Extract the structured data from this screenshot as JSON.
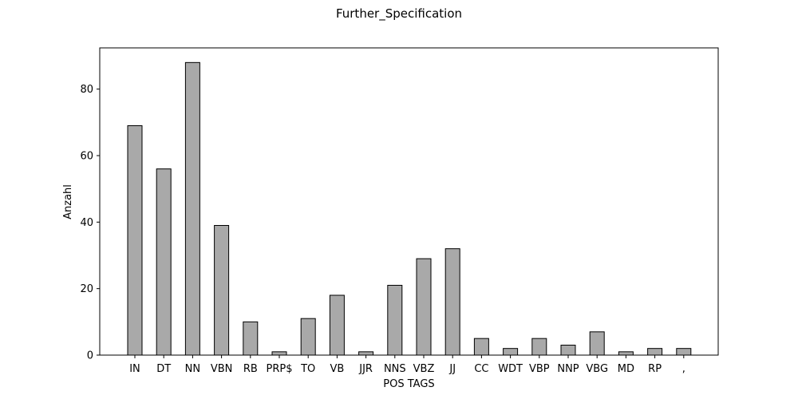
{
  "chart_data": {
    "type": "bar",
    "title": "Further_Specification",
    "xlabel": "POS TAGS",
    "ylabel": "Anzahl",
    "categories": [
      "IN",
      "DT",
      "NN",
      "VBN",
      "RB",
      "PRP$",
      "TO",
      "VB",
      "JJR",
      "NNS",
      "VBZ",
      "JJ",
      "CC",
      "WDT",
      "VBP",
      "NNP",
      "VBG",
      "MD",
      "RP",
      ","
    ],
    "values": [
      69,
      56,
      88,
      39,
      10,
      1,
      11,
      18,
      1,
      21,
      29,
      32,
      5,
      2,
      5,
      3,
      7,
      1,
      2,
      2
    ],
    "ylim": [
      0,
      92.4
    ],
    "yticks": [
      "0",
      "20",
      "40",
      "60",
      "80"
    ],
    "grid": false,
    "colors": {
      "bar_fill": "#a9a9a9",
      "bar_edge": "#000000",
      "axis": "#000000",
      "background": "#ffffff"
    }
  }
}
